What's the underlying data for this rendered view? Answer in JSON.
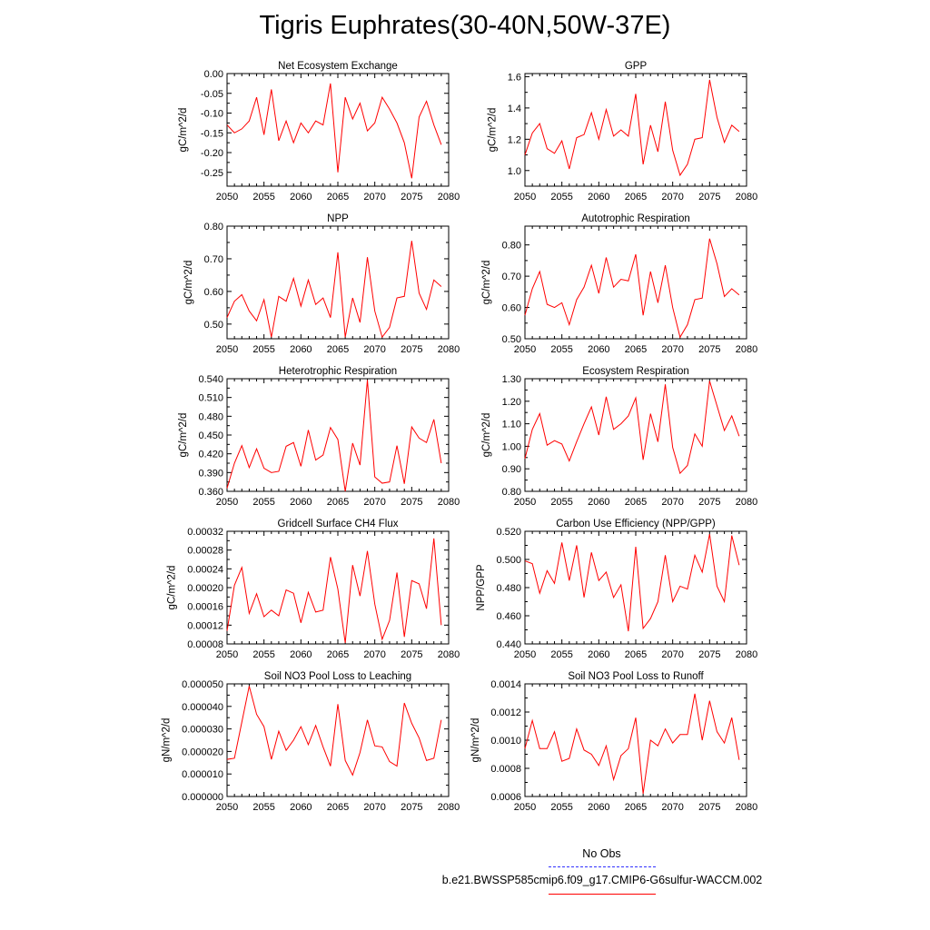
{
  "title": "Tigris Euphrates(30-40N,50W-37E)",
  "legend": {
    "obs_label": "No Obs",
    "case_label": "b.e21.BWSSP585cmip6.f09_g17.CMIP6-G6sulfur-WACCM.002",
    "obs_color": "#3030ff",
    "case_color": "#ff0000"
  },
  "chart_data": [
    {
      "type": "line",
      "title": "Net Ecosystem Exchange",
      "xlabel": "",
      "ylabel": "gC/m^2/d",
      "xlim": [
        2050,
        2080
      ],
      "ylim": [
        -0.285,
        0.0
      ],
      "xticks": [
        "2050",
        "2055",
        "2060",
        "2065",
        "2070",
        "2075",
        "2080"
      ],
      "yticks": [
        "0.00",
        "-0.05",
        "-0.10",
        "-0.15",
        "-0.20",
        "-0.25"
      ],
      "ytick_values": [
        0.0,
        -0.05,
        -0.1,
        -0.15,
        -0.2,
        -0.25
      ],
      "series": [
        {
          "x_start": 2050,
          "values": [
            -0.13,
            -0.15,
            -0.14,
            -0.12,
            -0.06,
            -0.155,
            -0.04,
            -0.17,
            -0.12,
            -0.175,
            -0.125,
            -0.15,
            -0.12,
            -0.13,
            -0.025,
            -0.25,
            -0.06,
            -0.115,
            -0.075,
            -0.145,
            -0.125,
            -0.06,
            -0.09,
            -0.125,
            -0.175,
            -0.265,
            -0.11,
            -0.07,
            -0.13,
            -0.18
          ]
        }
      ]
    },
    {
      "type": "line",
      "title": "GPP",
      "xlabel": "",
      "ylabel": "gC/m^2/d",
      "xlim": [
        2050,
        2080
      ],
      "ylim": [
        0.9,
        1.62
      ],
      "xticks": [
        "2050",
        "2055",
        "2060",
        "2065",
        "2070",
        "2075",
        "2080"
      ],
      "yticks": [
        "1.0",
        "1.2",
        "1.4",
        "1.6"
      ],
      "ytick_values": [
        1.0,
        1.2,
        1.4,
        1.6
      ],
      "series": [
        {
          "x_start": 2050,
          "values": [
            1.1,
            1.24,
            1.3,
            1.14,
            1.11,
            1.19,
            1.01,
            1.21,
            1.23,
            1.37,
            1.2,
            1.39,
            1.22,
            1.26,
            1.22,
            1.49,
            1.04,
            1.29,
            1.12,
            1.44,
            1.13,
            0.97,
            1.04,
            1.2,
            1.21,
            1.58,
            1.34,
            1.18,
            1.29,
            1.25
          ]
        }
      ]
    },
    {
      "type": "line",
      "title": "NPP",
      "xlabel": "",
      "ylabel": "gC/m^2/d",
      "xlim": [
        2050,
        2080
      ],
      "ylim": [
        0.455,
        0.8
      ],
      "xticks": [
        "2050",
        "2055",
        "2060",
        "2065",
        "2070",
        "2075",
        "2080"
      ],
      "yticks": [
        "0.50",
        "0.60",
        "0.70",
        "0.80"
      ],
      "ytick_values": [
        0.5,
        0.6,
        0.7,
        0.8
      ],
      "series": [
        {
          "x_start": 2050,
          "values": [
            0.52,
            0.57,
            0.59,
            0.54,
            0.51,
            0.575,
            0.46,
            0.585,
            0.57,
            0.64,
            0.555,
            0.635,
            0.56,
            0.58,
            0.52,
            0.72,
            0.46,
            0.58,
            0.505,
            0.705,
            0.54,
            0.46,
            0.49,
            0.58,
            0.585,
            0.755,
            0.595,
            0.545,
            0.635,
            0.615
          ]
        }
      ]
    },
    {
      "type": "line",
      "title": "Autotrophic Respiration",
      "xlabel": "",
      "ylabel": "gC/m^2/d",
      "xlim": [
        2050,
        2080
      ],
      "ylim": [
        0.5,
        0.86
      ],
      "xticks": [
        "2050",
        "2055",
        "2060",
        "2065",
        "2070",
        "2075",
        "2080"
      ],
      "yticks": [
        "0.50",
        "0.60",
        "0.70",
        "0.80"
      ],
      "ytick_values": [
        0.5,
        0.6,
        0.7,
        0.8
      ],
      "series": [
        {
          "x_start": 2050,
          "values": [
            0.575,
            0.66,
            0.715,
            0.61,
            0.6,
            0.615,
            0.545,
            0.625,
            0.665,
            0.735,
            0.645,
            0.76,
            0.665,
            0.69,
            0.685,
            0.77,
            0.575,
            0.715,
            0.615,
            0.735,
            0.6,
            0.505,
            0.545,
            0.625,
            0.63,
            0.82,
            0.74,
            0.635,
            0.66,
            0.64
          ]
        }
      ]
    },
    {
      "type": "line",
      "title": "Heterotrophic Respiration",
      "xlabel": "",
      "ylabel": "gC/m^2/d",
      "xlim": [
        2050,
        2080
      ],
      "ylim": [
        0.36,
        0.54
      ],
      "xticks": [
        "2050",
        "2055",
        "2060",
        "2065",
        "2070",
        "2075",
        "2080"
      ],
      "yticks": [
        "0.360",
        "0.390",
        "0.420",
        "0.450",
        "0.480",
        "0.510",
        "0.540"
      ],
      "ytick_values": [
        0.36,
        0.39,
        0.42,
        0.45,
        0.48,
        0.51,
        0.54
      ],
      "series": [
        {
          "x_start": 2050,
          "values": [
            0.365,
            0.405,
            0.433,
            0.398,
            0.428,
            0.397,
            0.39,
            0.392,
            0.432,
            0.438,
            0.4,
            0.458,
            0.41,
            0.418,
            0.462,
            0.443,
            0.36,
            0.437,
            0.402,
            0.538,
            0.383,
            0.373,
            0.375,
            0.433,
            0.372,
            0.463,
            0.445,
            0.438,
            0.475,
            0.405
          ]
        }
      ]
    },
    {
      "type": "line",
      "title": "Ecosystem Respiration",
      "xlabel": "",
      "ylabel": "gC/m^2/d",
      "xlim": [
        2050,
        2080
      ],
      "ylim": [
        0.8,
        1.3
      ],
      "xticks": [
        "2050",
        "2055",
        "2060",
        "2065",
        "2070",
        "2075",
        "2080"
      ],
      "yticks": [
        "0.80",
        "0.90",
        "1.00",
        "1.10",
        "1.20",
        "1.30"
      ],
      "ytick_values": [
        0.8,
        0.9,
        1.0,
        1.1,
        1.2,
        1.3
      ],
      "series": [
        {
          "x_start": 2050,
          "values": [
            0.945,
            1.075,
            1.145,
            1.005,
            1.025,
            1.01,
            0.935,
            1.02,
            1.1,
            1.175,
            1.05,
            1.22,
            1.075,
            1.1,
            1.135,
            1.215,
            0.94,
            1.145,
            1.02,
            1.275,
            0.995,
            0.88,
            0.915,
            1.055,
            1.0,
            1.29,
            1.18,
            1.07,
            1.135,
            1.045
          ]
        }
      ]
    },
    {
      "type": "line",
      "title": "Gridcell Surface CH4 Flux",
      "xlabel": "",
      "ylabel": "gC/m^2/d",
      "xlim": [
        2050,
        2080
      ],
      "ylim": [
        8e-05,
        0.00032
      ],
      "xticks": [
        "2050",
        "2055",
        "2060",
        "2065",
        "2070",
        "2075",
        "2080"
      ],
      "yticks": [
        "0.00008",
        "0.00012",
        "0.00016",
        "0.00020",
        "0.00024",
        "0.00028",
        "0.00032"
      ],
      "ytick_values": [
        8e-05,
        0.00012,
        0.00016,
        0.0002,
        0.00024,
        0.00028,
        0.00032
      ],
      "series": [
        {
          "x_start": 2050,
          "values": [
            0.000108,
            0.000205,
            0.000243,
            0.000145,
            0.000187,
            0.000138,
            0.000152,
            0.00014,
            0.000195,
            0.000188,
            0.000125,
            0.00019,
            0.000148,
            0.000152,
            0.000265,
            0.000197,
            8.2e-05,
            0.000248,
            0.000182,
            0.000278,
            0.000165,
            9e-05,
            0.00013,
            0.000232,
            9.5e-05,
            0.000215,
            0.000208,
            0.000155,
            0.000305,
            0.00012
          ]
        }
      ]
    },
    {
      "type": "line",
      "title": "Carbon Use Efficiency (NPP/GPP)",
      "xlabel": "",
      "ylabel": "NPP/GPP",
      "xlim": [
        2050,
        2080
      ],
      "ylim": [
        0.44,
        0.52
      ],
      "xticks": [
        "2050",
        "2055",
        "2060",
        "2065",
        "2070",
        "2075",
        "2080"
      ],
      "yticks": [
        "0.440",
        "0.460",
        "0.480",
        "0.500",
        "0.520"
      ],
      "ytick_values": [
        0.44,
        0.46,
        0.48,
        0.5,
        0.52
      ],
      "series": [
        {
          "x_start": 2050,
          "values": [
            0.499,
            0.497,
            0.476,
            0.492,
            0.483,
            0.512,
            0.485,
            0.51,
            0.473,
            0.505,
            0.485,
            0.491,
            0.473,
            0.482,
            0.449,
            0.509,
            0.451,
            0.458,
            0.47,
            0.503,
            0.47,
            0.481,
            0.479,
            0.503,
            0.491,
            0.518,
            0.481,
            0.47,
            0.517,
            0.496
          ]
        }
      ]
    },
    {
      "type": "line",
      "title": "Soil NO3 Pool Loss to Leaching",
      "xlabel": "",
      "ylabel": "gN/m^2/d",
      "xlim": [
        2050,
        2080
      ],
      "ylim": [
        0.0,
        5e-05
      ],
      "xticks": [
        "2050",
        "2055",
        "2060",
        "2065",
        "2070",
        "2075",
        "2080"
      ],
      "yticks": [
        "0.000000",
        "0.000010",
        "0.000020",
        "0.000030",
        "0.000040",
        "0.000050"
      ],
      "ytick_values": [
        0.0,
        1e-05,
        2e-05,
        3e-05,
        4e-05,
        5e-05
      ],
      "series": [
        {
          "x_start": 2050,
          "values": [
            1.65e-05,
            1.7e-05,
            3.3e-05,
            4.9e-05,
            3.65e-05,
            3.1e-05,
            1.65e-05,
            2.9e-05,
            2.05e-05,
            2.5e-05,
            3.1e-05,
            2.3e-05,
            3.15e-05,
            2.2e-05,
            1.35e-05,
            4.1e-05,
            1.6e-05,
            9.5e-06,
            1.95e-05,
            3.4e-05,
            2.25e-05,
            2.2e-05,
            1.55e-05,
            1.35e-05,
            4.15e-05,
            3.25e-05,
            2.6e-05,
            1.6e-05,
            1.7e-05,
            3.4e-05
          ]
        }
      ]
    },
    {
      "type": "line",
      "title": "Soil NO3 Pool Loss to Runoff",
      "xlabel": "",
      "ylabel": "gN/m^2/d",
      "xlim": [
        2050,
        2080
      ],
      "ylim": [
        0.0006,
        0.0014
      ],
      "xticks": [
        "2050",
        "2055",
        "2060",
        "2065",
        "2070",
        "2075",
        "2080"
      ],
      "yticks": [
        "0.0006",
        "0.0008",
        "0.0010",
        "0.0012",
        "0.0014"
      ],
      "ytick_values": [
        0.0006,
        0.0008,
        0.001,
        0.0012,
        0.0014
      ],
      "series": [
        {
          "x_start": 2050,
          "values": [
            0.00094,
            0.00114,
            0.00094,
            0.00094,
            0.00106,
            0.00085,
            0.00087,
            0.00108,
            0.00093,
            0.0009,
            0.00082,
            0.00096,
            0.00072,
            0.00089,
            0.00094,
            0.00116,
            0.00062,
            0.001,
            0.00096,
            0.00108,
            0.00098,
            0.00104,
            0.00104,
            0.00133,
            0.001,
            0.00128,
            0.00106,
            0.00098,
            0.00116,
            0.00086
          ]
        }
      ]
    }
  ]
}
